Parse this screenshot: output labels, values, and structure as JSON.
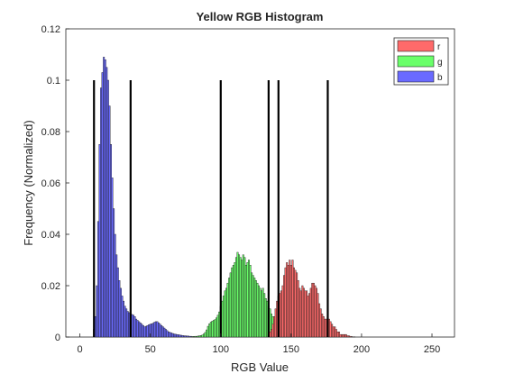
{
  "figure": {
    "background": "#ffffff"
  },
  "chart_data": {
    "type": "bar",
    "title": "Yellow RGB Histogram",
    "xlabel": "RGB Value",
    "ylabel": "Frequency (Normalized)",
    "xlim": [
      -10,
      266
    ],
    "ylim": [
      0,
      0.12
    ],
    "xticks": [
      "0",
      "50",
      "100",
      "150",
      "200",
      "250"
    ],
    "xtick_values": [
      0,
      50,
      100,
      150,
      200,
      250
    ],
    "yticks": [
      "0",
      "0.02",
      "0.04",
      "0.06",
      "0.08",
      "0.1",
      "0.12"
    ],
    "ytick_values": [
      0,
      0.02,
      0.04,
      0.06,
      0.08,
      0.1,
      0.12
    ],
    "grid": false,
    "legend_position": "top-right",
    "bin_width": 1,
    "series": [
      {
        "name": "r",
        "color": "#ff6a6a",
        "x": [
          134,
          135,
          136,
          137,
          138,
          139,
          140,
          141,
          142,
          143,
          144,
          145,
          146,
          147,
          148,
          149,
          150,
          151,
          152,
          153,
          154,
          155,
          156,
          157,
          158,
          159,
          160,
          161,
          162,
          163,
          164,
          165,
          166,
          167,
          168,
          169,
          170,
          171,
          172,
          173,
          174,
          175,
          176,
          177,
          178,
          179,
          180,
          181,
          182,
          183,
          184,
          185,
          186,
          187,
          188,
          189,
          190,
          191,
          192,
          193,
          194,
          195
        ],
        "values": [
          0.001,
          0.002,
          0.003,
          0.005,
          0.008,
          0.011,
          0.014,
          0.016,
          0.017,
          0.018,
          0.02,
          0.024,
          0.027,
          0.029,
          0.028,
          0.03,
          0.028,
          0.03,
          0.027,
          0.026,
          0.025,
          0.022,
          0.019,
          0.018,
          0.02,
          0.019,
          0.018,
          0.018,
          0.016,
          0.017,
          0.019,
          0.021,
          0.021,
          0.02,
          0.019,
          0.017,
          0.013,
          0.011,
          0.009,
          0.008,
          0.007,
          0.007,
          0.008,
          0.007,
          0.006,
          0.005,
          0.004,
          0.004,
          0.003,
          0.002,
          0.002,
          0.001,
          0.001,
          0.001,
          0.001,
          0.001,
          0.0005,
          0.0005,
          0.0003,
          0.0002,
          0.0001,
          0.0001
        ]
      },
      {
        "name": "g",
        "color": "#6aff6a",
        "x": [
          80,
          81,
          82,
          83,
          84,
          85,
          86,
          87,
          88,
          89,
          90,
          91,
          92,
          93,
          94,
          95,
          96,
          97,
          98,
          99,
          100,
          101,
          102,
          103,
          104,
          105,
          106,
          107,
          108,
          109,
          110,
          111,
          112,
          113,
          114,
          115,
          116,
          117,
          118,
          119,
          120,
          121,
          122,
          123,
          124,
          125,
          126,
          127,
          128,
          129,
          130,
          131,
          132,
          133,
          134,
          135,
          136,
          137,
          138,
          139,
          140,
          141,
          142,
          143,
          144,
          145,
          146,
          147,
          148,
          149,
          150
        ],
        "values": [
          0.0002,
          0.0002,
          0.0003,
          0.0003,
          0.0004,
          0.0005,
          0.0006,
          0.0008,
          0.0012,
          0.0018,
          0.0028,
          0.0042,
          0.0052,
          0.0058,
          0.0062,
          0.0065,
          0.0068,
          0.0075,
          0.0085,
          0.0098,
          0.012,
          0.014,
          0.016,
          0.018,
          0.019,
          0.021,
          0.023,
          0.025,
          0.027,
          0.028,
          0.029,
          0.031,
          0.033,
          0.032,
          0.031,
          0.03,
          0.032,
          0.031,
          0.028,
          0.029,
          0.03,
          0.028,
          0.025,
          0.024,
          0.023,
          0.022,
          0.021,
          0.02,
          0.019,
          0.018,
          0.019,
          0.017,
          0.015,
          0.014,
          0.012,
          0.011,
          0.009,
          0.008,
          0.007,
          0.006,
          0.005,
          0.004,
          0.004,
          0.003,
          0.0025,
          0.002,
          0.0015,
          0.001,
          0.0008,
          0.0005,
          0.0003
        ]
      },
      {
        "name": "b",
        "color": "#6a6aff",
        "x": [
          10,
          11,
          12,
          13,
          14,
          15,
          16,
          17,
          18,
          19,
          20,
          21,
          22,
          23,
          24,
          25,
          26,
          27,
          28,
          29,
          30,
          31,
          32,
          33,
          34,
          35,
          36,
          37,
          38,
          39,
          40,
          41,
          42,
          43,
          44,
          45,
          46,
          47,
          48,
          49,
          50,
          51,
          52,
          53,
          54,
          55,
          56,
          57,
          58,
          59,
          60,
          61,
          62,
          63,
          64,
          65,
          66,
          67,
          68,
          69,
          70,
          71,
          72,
          73,
          74,
          75,
          76,
          77,
          78,
          79,
          80,
          81,
          82,
          83,
          84,
          85,
          86,
          87,
          88,
          89,
          90
        ],
        "values": [
          0.003,
          0.008,
          0.02,
          0.045,
          0.075,
          0.097,
          0.103,
          0.109,
          0.108,
          0.105,
          0.1,
          0.09,
          0.075,
          0.062,
          0.05,
          0.04,
          0.032,
          0.027,
          0.022,
          0.019,
          0.016,
          0.014,
          0.012,
          0.011,
          0.01,
          0.0095,
          0.009,
          0.0088,
          0.0085,
          0.008,
          0.007,
          0.0065,
          0.006,
          0.0055,
          0.005,
          0.0045,
          0.004,
          0.0042,
          0.0045,
          0.0048,
          0.005,
          0.0052,
          0.0054,
          0.0058,
          0.006,
          0.006,
          0.0055,
          0.005,
          0.0045,
          0.004,
          0.0035,
          0.003,
          0.0025,
          0.002,
          0.0018,
          0.0016,
          0.0014,
          0.0012,
          0.0011,
          0.001,
          0.0009,
          0.0008,
          0.0007,
          0.0006,
          0.0005,
          0.0005,
          0.0004,
          0.0004,
          0.0003,
          0.0003,
          0.0002,
          0.0002,
          0.0002,
          0.0002,
          0.0002,
          0.0002,
          0.0002,
          0.0002,
          0.0002,
          0.0002,
          0.0002
        ]
      }
    ],
    "vertical_lines": {
      "color": "#000000",
      "x": [
        10,
        36,
        100,
        134,
        141,
        176
      ],
      "height": 0.1
    }
  }
}
